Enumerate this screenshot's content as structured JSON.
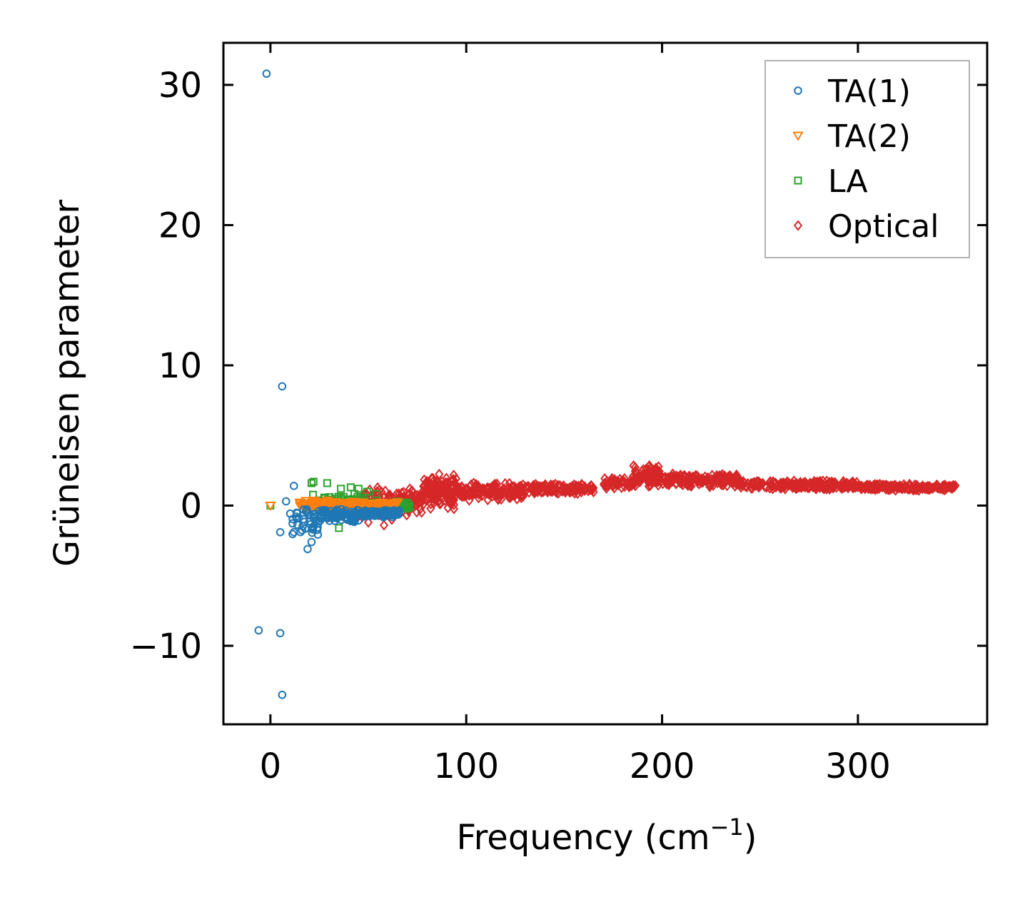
{
  "chart_data": {
    "type": "scatter",
    "title": "",
    "xlabel": "Frequency (cm",
    "xlabel_sup": "−1",
    "xlabel_end": ")",
    "ylabel": "Grüneisen parameter",
    "xlim": [
      -24,
      366
    ],
    "ylim": [
      -15.6,
      33
    ],
    "xticks": [
      0,
      100,
      200,
      300
    ],
    "xtick_labels": [
      "0",
      "100",
      "200",
      "300"
    ],
    "yticks": [
      -10,
      0,
      10,
      20,
      30
    ],
    "ytick_labels": [
      "−10",
      "0",
      "10",
      "20",
      "30"
    ],
    "grid": false,
    "legend_position": "top-right",
    "series": [
      {
        "name": "TA(1)",
        "color": "#1f77b4",
        "marker": "circle",
        "outliers": [
          [
            -2,
            30.8
          ],
          [
            6,
            8.5
          ],
          [
            -6,
            -8.9
          ],
          [
            5,
            -9.1
          ],
          [
            6,
            -13.5
          ],
          [
            5,
            -1.9
          ],
          [
            12,
            -1.9
          ],
          [
            19,
            -3.1
          ],
          [
            21,
            -2.6
          ],
          [
            12,
            1.4
          ],
          [
            8,
            0.3
          ]
        ],
        "bands": [
          {
            "x": [
              10,
              25
            ],
            "y_center": -1.0,
            "y_spread": 1.2,
            "count": 40
          },
          {
            "x": [
              25,
              45
            ],
            "y_center": -0.7,
            "y_spread": 0.5,
            "count": 90
          },
          {
            "x": [
              45,
              66
            ],
            "y_center": -0.55,
            "y_spread": 0.3,
            "count": 120
          }
        ]
      },
      {
        "name": "TA(2)",
        "color": "#ff7f0e",
        "marker": "triangle-down",
        "outliers": [
          [
            0,
            0
          ]
        ],
        "bands": [
          {
            "x": [
              15,
              35
            ],
            "y_center": 0.1,
            "y_spread": 0.4,
            "count": 60
          },
          {
            "x": [
              35,
              65
            ],
            "y_center": 0.0,
            "y_spread": 0.3,
            "count": 120
          }
        ]
      },
      {
        "name": "LA",
        "color": "#2ca02c",
        "marker": "square",
        "outliers": [
          [
            0,
            0
          ],
          [
            21,
            1.6
          ],
          [
            22,
            1.7
          ],
          [
            29,
            1.6
          ],
          [
            36,
            1.2
          ],
          [
            45,
            1.2
          ],
          [
            35,
            -1.6
          ],
          [
            41,
            1.3
          ]
        ],
        "bands": [
          {
            "x": [
              20,
              55
            ],
            "y_center": 0.3,
            "y_spread": 0.8,
            "count": 60
          },
          {
            "x": [
              55,
              71
            ],
            "y_center": 0.0,
            "y_spread": 0.3,
            "count": 60
          }
        ]
      },
      {
        "name": "Optical",
        "color": "#d62728",
        "marker": "diamond",
        "outliers": [
          [
            50,
            -1.2
          ],
          [
            58,
            -1.4
          ],
          [
            62,
            -1.0
          ]
        ],
        "bands": [
          {
            "x": [
              45,
              78
            ],
            "y_center": 0.3,
            "y_spread": 1.3,
            "count": 140
          },
          {
            "x": [
              78,
              95
            ],
            "y_center": 1.0,
            "y_spread": 1.3,
            "count": 140
          },
          {
            "x": [
              95,
              130
            ],
            "y_center": 1.0,
            "y_spread": 0.7,
            "count": 150
          },
          {
            "x": [
              130,
              165
            ],
            "y_center": 1.2,
            "y_spread": 0.4,
            "count": 120
          },
          {
            "x": [
              170,
              185
            ],
            "y_center": 1.6,
            "y_spread": 0.4,
            "count": 50
          },
          {
            "x": [
              185,
              200
            ],
            "y_center": 2.1,
            "y_spread": 0.9,
            "count": 90
          },
          {
            "x": [
              200,
              240
            ],
            "y_center": 1.8,
            "y_spread": 0.5,
            "count": 150
          },
          {
            "x": [
              240,
              300
            ],
            "y_center": 1.45,
            "y_spread": 0.35,
            "count": 200
          },
          {
            "x": [
              300,
              350
            ],
            "y_center": 1.3,
            "y_spread": 0.25,
            "count": 170
          }
        ]
      }
    ]
  }
}
